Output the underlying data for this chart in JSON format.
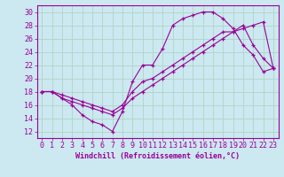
{
  "xlabel": "Windchill (Refroidissement éolien,°C)",
  "xlim": [
    -0.5,
    23.5
  ],
  "ylim": [
    11,
    31
  ],
  "xticks": [
    0,
    1,
    2,
    3,
    4,
    5,
    6,
    7,
    8,
    9,
    10,
    11,
    12,
    13,
    14,
    15,
    16,
    17,
    18,
    19,
    20,
    21,
    22,
    23
  ],
  "yticks": [
    12,
    14,
    16,
    18,
    20,
    22,
    24,
    26,
    28,
    30
  ],
  "background_color": "#cce8f0",
  "grid_color": "#b0d4c8",
  "line_color": "#990099",
  "line1_x": [
    0,
    1,
    2,
    3,
    4,
    5,
    6,
    7,
    8,
    9,
    10,
    11,
    12,
    13,
    14,
    15,
    16,
    17,
    18,
    19,
    20,
    21,
    22,
    23
  ],
  "line1_y": [
    18,
    18,
    17,
    16,
    14.5,
    13.5,
    13,
    12,
    15,
    19.5,
    22,
    22,
    24.5,
    28,
    29,
    29.5,
    30,
    30,
    29,
    27.5,
    25,
    23.5,
    21,
    21.5
  ],
  "line2_x": [
    0,
    1,
    2,
    3,
    4,
    5,
    6,
    7,
    8,
    9,
    10,
    11,
    12,
    13,
    14,
    15,
    16,
    17,
    18,
    19,
    20,
    21,
    22,
    23
  ],
  "line2_y": [
    18,
    18,
    17.5,
    17,
    16.5,
    16,
    15.5,
    15,
    16,
    18,
    19.5,
    20,
    21,
    22,
    23,
    24,
    25,
    26,
    27,
    27,
    27.5,
    28,
    28.5,
    21.5
  ],
  "line3_x": [
    0,
    1,
    2,
    3,
    4,
    5,
    6,
    7,
    8,
    9,
    10,
    11,
    12,
    13,
    14,
    15,
    16,
    17,
    18,
    19,
    20,
    21,
    22,
    23
  ],
  "line3_y": [
    18,
    18,
    17,
    16.5,
    16,
    15.5,
    15,
    14.5,
    15.5,
    17,
    18,
    19,
    20,
    21,
    22,
    23,
    24,
    25,
    26,
    27,
    28,
    25,
    23,
    21.5
  ],
  "tick_fontsize": 6,
  "xlabel_fontsize": 6
}
